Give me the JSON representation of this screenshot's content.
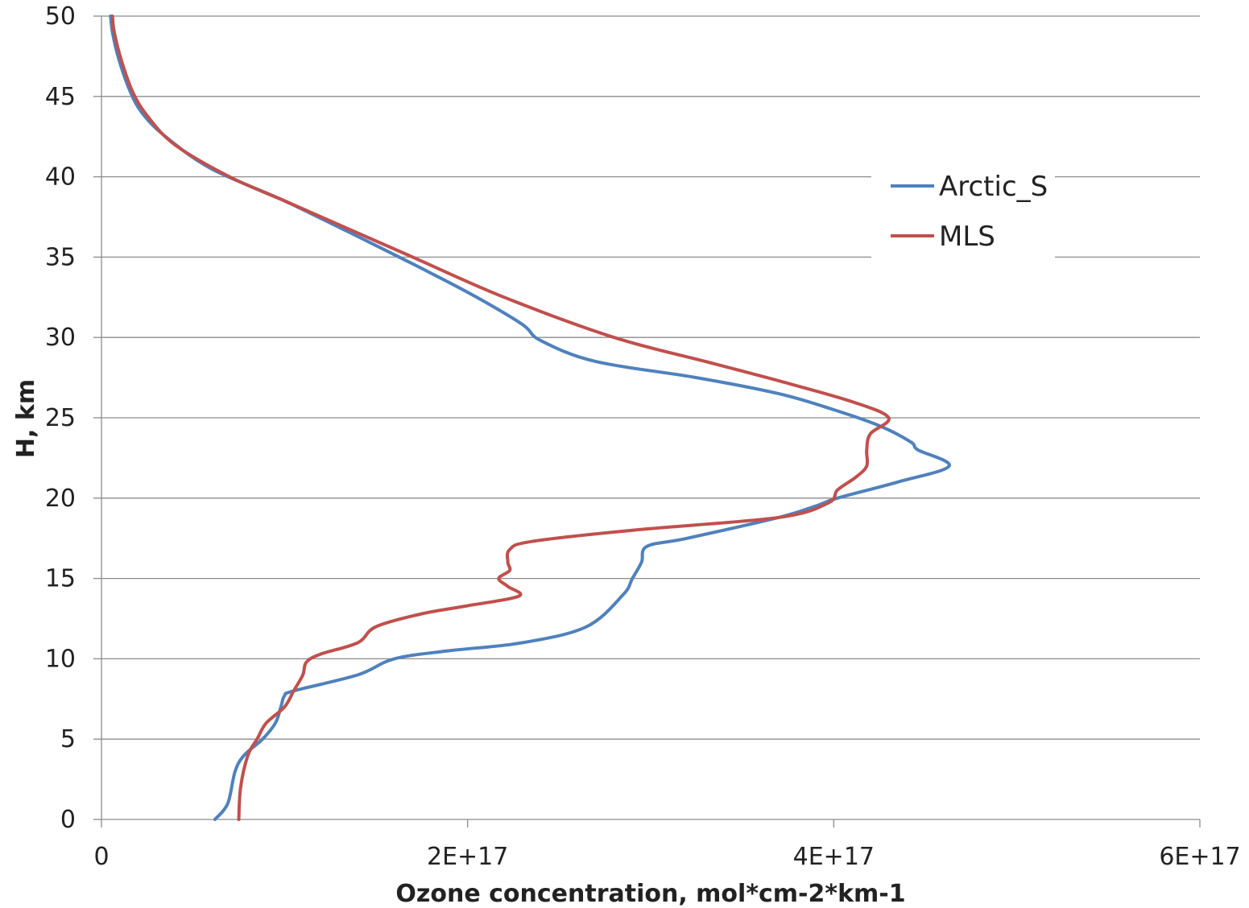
{
  "chart_data": {
    "type": "line",
    "title": "",
    "xlabel": "Ozone concentration, mol*cm-2*km-1",
    "ylabel": "H, km",
    "xlim": [
      0,
      6e+17
    ],
    "ylim": [
      0,
      50
    ],
    "x_ticks": [
      {
        "value": 0,
        "label": "0"
      },
      {
        "value": 2e+17,
        "label": "2E+17"
      },
      {
        "value": 4e+17,
        "label": "4E+17"
      },
      {
        "value": 6e+17,
        "label": "6E+17"
      }
    ],
    "y_ticks": [
      {
        "value": 0,
        "label": "0"
      },
      {
        "value": 5,
        "label": "5"
      },
      {
        "value": 10,
        "label": "10"
      },
      {
        "value": 15,
        "label": "15"
      },
      {
        "value": 20,
        "label": "20"
      },
      {
        "value": 25,
        "label": "25"
      },
      {
        "value": 30,
        "label": "30"
      },
      {
        "value": 35,
        "label": "35"
      },
      {
        "value": 40,
        "label": "40"
      },
      {
        "value": 45,
        "label": "45"
      },
      {
        "value": 50,
        "label": "50"
      }
    ],
    "grid": "horizontal",
    "legend_position": "right",
    "series": [
      {
        "name": "Arctic_S",
        "color": "#4f81bd",
        "points": [
          [
            6.2e+16,
            0
          ],
          [
            6.9e+16,
            1
          ],
          [
            7.3e+16,
            3
          ],
          [
            7.8e+16,
            4
          ],
          [
            8.8e+16,
            5
          ],
          [
            9.5e+16,
            6
          ],
          [
            9.8e+16,
            7
          ],
          [
            1e+17,
            7.7
          ],
          [
            1.05e+17,
            8
          ],
          [
            1.4e+17,
            9
          ],
          [
            1.6e+17,
            10
          ],
          [
            1.9e+17,
            10.5
          ],
          [
            2.3e+17,
            11
          ],
          [
            2.65e+17,
            12
          ],
          [
            2.85e+17,
            14
          ],
          [
            2.9e+17,
            15
          ],
          [
            2.95e+17,
            16
          ],
          [
            2.98e+17,
            17
          ],
          [
            3.2e+17,
            17.5
          ],
          [
            3.7e+17,
            18.8
          ],
          [
            3.9e+17,
            19.5
          ],
          [
            4.02e+17,
            20
          ],
          [
            4.35e+17,
            21
          ],
          [
            4.63e+17,
            22
          ],
          [
            4.46e+17,
            23
          ],
          [
            4.42e+17,
            23.5
          ],
          [
            4.25e+17,
            24.5
          ],
          [
            4e+17,
            25.5
          ],
          [
            3.7e+17,
            26.5
          ],
          [
            3.25e+17,
            27.5
          ],
          [
            2.7e+17,
            28.5
          ],
          [
            2.4e+17,
            29.8
          ],
          [
            2.3e+17,
            30.8
          ],
          [
            2.05e+17,
            32.5
          ],
          [
            1.8e+17,
            34
          ],
          [
            1.45e+17,
            36
          ],
          [
            1e+17,
            38.5
          ],
          [
            6e+16,
            40.5
          ],
          [
            3.5e+16,
            42.5
          ],
          [
            2.2e+16,
            44
          ],
          [
            1.5e+16,
            45.5
          ],
          [
            9000000000000000.0,
            47.5
          ],
          [
            6000000000000000.0,
            49
          ],
          [
            5000000000000000.0,
            50
          ]
        ]
      },
      {
        "name": "MLS",
        "color": "#c0504d",
        "points": [
          [
            7.5e+16,
            0
          ],
          [
            7.6e+16,
            2
          ],
          [
            8e+16,
            4
          ],
          [
            8.5e+16,
            5
          ],
          [
            9e+16,
            6
          ],
          [
            1e+17,
            7
          ],
          [
            1.05e+17,
            8
          ],
          [
            1.1e+17,
            9
          ],
          [
            1.12e+17,
            9.8
          ],
          [
            1.2e+17,
            10.3
          ],
          [
            1.4e+17,
            11
          ],
          [
            1.5e+17,
            12
          ],
          [
            1.75e+17,
            12.8
          ],
          [
            2e+17,
            13.3
          ],
          [
            2.28e+17,
            13.9
          ],
          [
            2.22e+17,
            14.5
          ],
          [
            2.17e+17,
            15
          ],
          [
            2.23e+17,
            15.5
          ],
          [
            2.22e+17,
            16
          ],
          [
            2.23e+17,
            16.8
          ],
          [
            2.35e+17,
            17.3
          ],
          [
            2.9e+17,
            18
          ],
          [
            3.7e+17,
            18.8
          ],
          [
            3.97e+17,
            19.7
          ],
          [
            4.02e+17,
            20.5
          ],
          [
            4.12e+17,
            21.3
          ],
          [
            4.18e+17,
            22
          ],
          [
            4.18e+17,
            23
          ],
          [
            4.2e+17,
            24
          ],
          [
            4.3e+17,
            25
          ],
          [
            4.1e+17,
            26
          ],
          [
            3.7e+17,
            27.3
          ],
          [
            3.3e+17,
            28.5
          ],
          [
            2.8e+17,
            30
          ],
          [
            2.2e+17,
            32.5
          ],
          [
            1.7e+17,
            35
          ],
          [
            1.3e+17,
            37
          ],
          [
            1e+17,
            38.5
          ],
          [
            7e+16,
            40
          ],
          [
            4e+16,
            42
          ],
          [
            2.5e+16,
            43.8
          ],
          [
            1.7e+16,
            45.3
          ],
          [
            1.1e+16,
            47.2
          ],
          [
            7000000000000000.0,
            49
          ],
          [
            6000000000000000.0,
            50
          ]
        ]
      }
    ]
  }
}
